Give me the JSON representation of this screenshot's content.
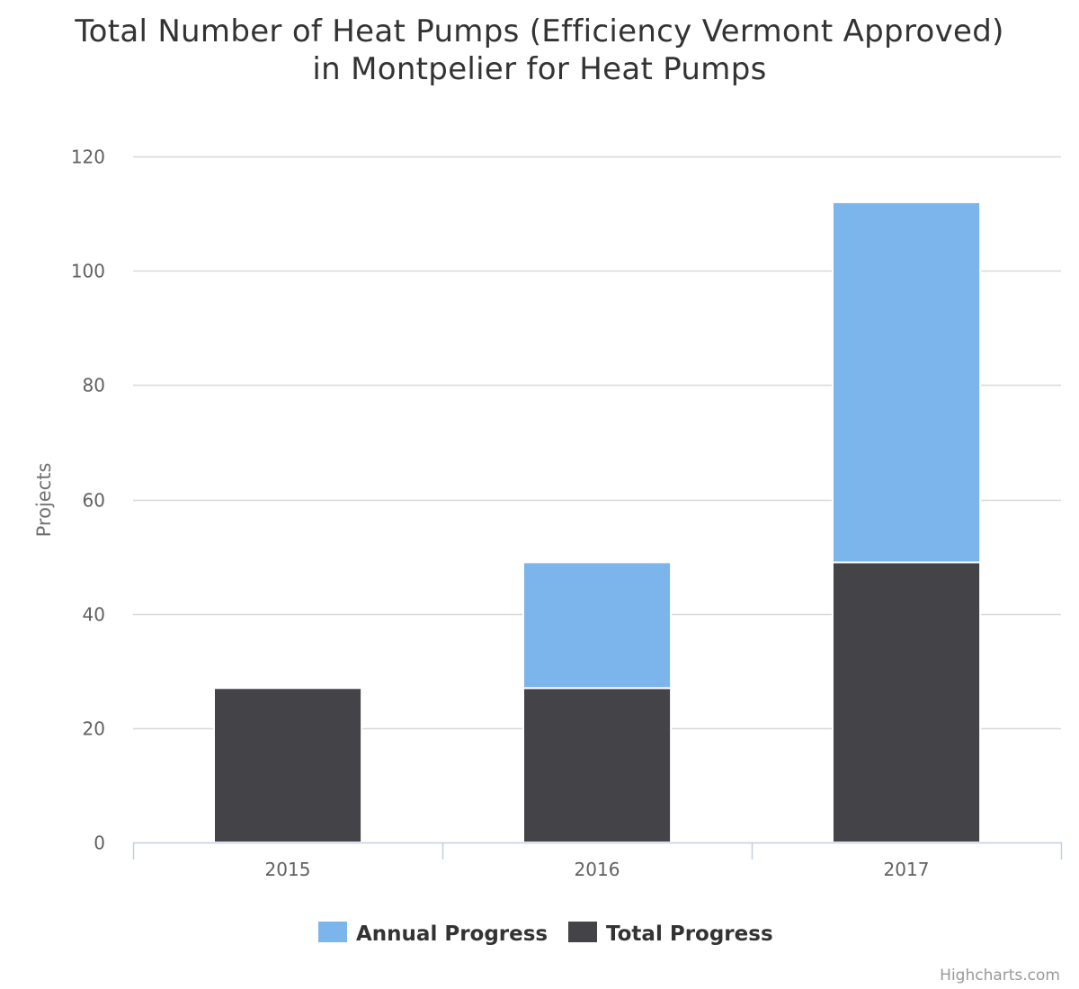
{
  "chart_data": {
    "type": "bar",
    "stacked": true,
    "title_lines": [
      "Total Number of Heat Pumps (Efficiency Vermont Approved)",
      "in Montpelier for Heat Pumps"
    ],
    "categories": [
      "2015",
      "2016",
      "2017"
    ],
    "ylabel": "Projects",
    "ylim": [
      0,
      120
    ],
    "yticks": [
      "0",
      "20",
      "40",
      "60",
      "80",
      "100",
      "120"
    ],
    "grid": true,
    "legend_position": "bottom-center",
    "series": [
      {
        "name": "Annual Progress",
        "color": "#7cb5ec",
        "values": [
          0,
          22,
          63
        ]
      },
      {
        "name": "Total Progress",
        "color": "#434348",
        "values": [
          27,
          27,
          49
        ]
      }
    ],
    "credits": "Highcharts.com"
  }
}
